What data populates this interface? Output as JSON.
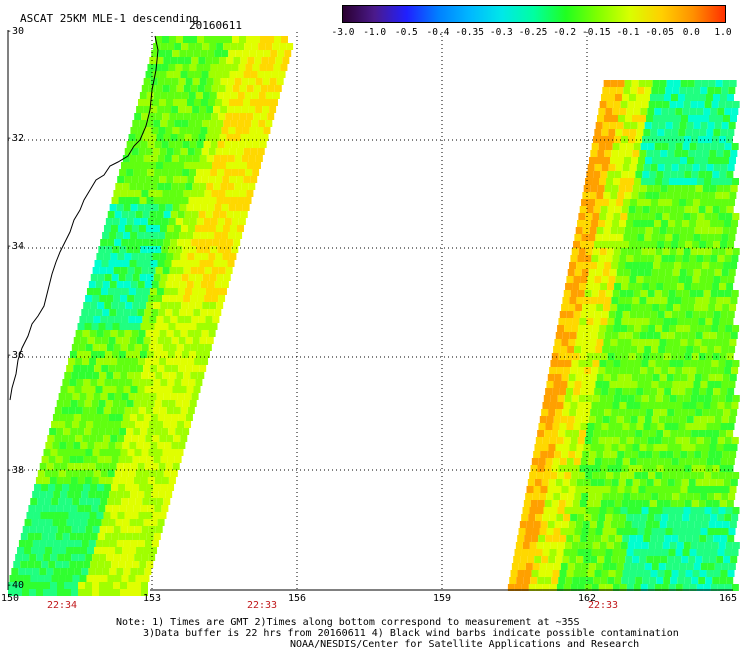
{
  "header": {
    "title": "ASCAT 25KM MLE-1 descending",
    "date": "20160611"
  },
  "colorbar": {
    "labels": [
      "-3.0",
      "-1.0",
      "-0.5",
      "-0.4",
      "-0.35",
      "-0.3",
      "-0.25",
      "-0.2",
      "-0.15",
      "-0.1",
      "-0.05",
      "0.0",
      "1.0"
    ],
    "colors": [
      "#2a0030",
      "#4b1a8c",
      "#2020ff",
      "#0080ff",
      "#00b8ff",
      "#00e8e8",
      "#00ffa0",
      "#20ff20",
      "#80ff00",
      "#d8ff00",
      "#ffd000",
      "#ff9000",
      "#ff3000"
    ]
  },
  "axes": {
    "lat_labels": [
      "-30",
      "-32",
      "-34",
      "-36",
      "-38",
      "-40"
    ],
    "lon_labels": [
      "150",
      "153",
      "156",
      "159",
      "162",
      "165"
    ]
  },
  "times": {
    "left_1": "22:34",
    "left_2": "22:33",
    "right": "22:33"
  },
  "notes": {
    "line1": "Note: 1) Times are GMT 2)Times along bottom correspond to measurement at ~35S",
    "line2": "3)Data buffer is 22 hrs from 20160611 4) Black wind barbs indicate possible contamination",
    "line3": "NOAA/NESDIS/Center for Satellite Applications and Research"
  }
}
